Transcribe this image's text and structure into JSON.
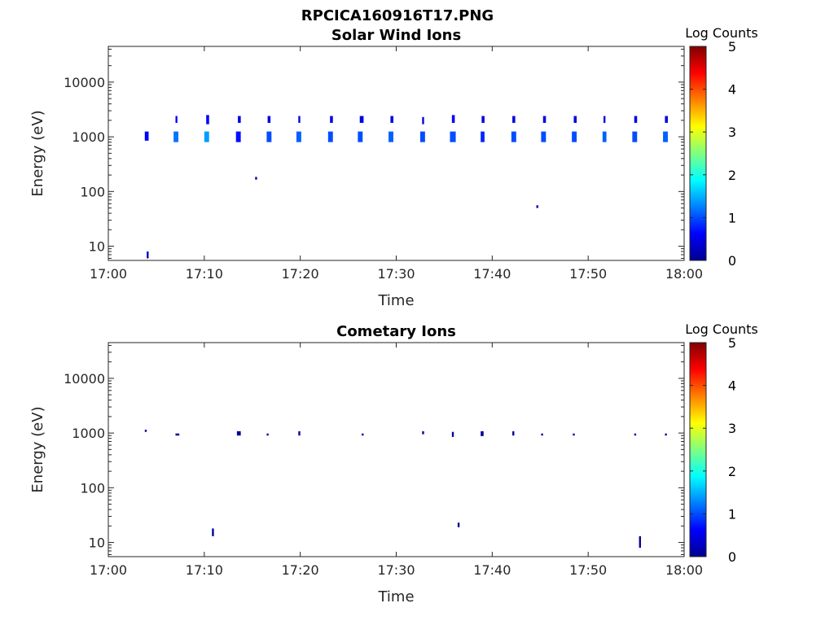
{
  "figure_title": "RPCICA160916T17.PNG",
  "chart_data": [
    {
      "type": "heatmap",
      "title": "Solar Wind Ions",
      "xlabel": "Time",
      "ylabel": "Energy (eV)",
      "x_ticks": [
        "17:00",
        "17:10",
        "17:20",
        "17:30",
        "17:40",
        "17:50",
        "18:00"
      ],
      "xlim_minutes": [
        0,
        60
      ],
      "y_scale": "log",
      "ylim": [
        5.5,
        45000
      ],
      "y_ticks": [
        10,
        100,
        1000,
        10000
      ],
      "y_tick_labels": [
        "10",
        "100",
        "1000",
        "10000"
      ],
      "colorbar": {
        "label": "Log Counts",
        "range": [
          0,
          5
        ],
        "ticks": [
          "0",
          "1",
          "2",
          "3",
          "4",
          "5"
        ],
        "colormap": "jet"
      },
      "cells": [
        {
          "t": 3.8,
          "dt": 0.4,
          "e_lo": 850,
          "e_hi": 1250,
          "v": 0.6
        },
        {
          "t": 4.0,
          "dt": 0.2,
          "e_lo": 6,
          "e_hi": 8,
          "v": 0.3
        },
        {
          "t": 6.8,
          "dt": 0.5,
          "e_lo": 800,
          "e_hi": 1250,
          "v": 1.2
        },
        {
          "t": 7.0,
          "dt": 0.2,
          "e_lo": 1800,
          "e_hi": 2400,
          "v": 0.6
        },
        {
          "t": 10.0,
          "dt": 0.5,
          "e_lo": 800,
          "e_hi": 1250,
          "v": 1.4
        },
        {
          "t": 10.2,
          "dt": 0.3,
          "e_lo": 1700,
          "e_hi": 2500,
          "v": 0.6
        },
        {
          "t": 13.3,
          "dt": 0.5,
          "e_lo": 800,
          "e_hi": 1250,
          "v": 0.7
        },
        {
          "t": 13.5,
          "dt": 0.3,
          "e_lo": 1800,
          "e_hi": 2400,
          "v": 0.5
        },
        {
          "t": 15.3,
          "dt": 0.2,
          "e_lo": 165,
          "e_hi": 185,
          "v": 0.2
        },
        {
          "t": 16.5,
          "dt": 0.5,
          "e_lo": 800,
          "e_hi": 1250,
          "v": 1.0
        },
        {
          "t": 16.6,
          "dt": 0.3,
          "e_lo": 1800,
          "e_hi": 2400,
          "v": 0.5
        },
        {
          "t": 19.6,
          "dt": 0.5,
          "e_lo": 800,
          "e_hi": 1250,
          "v": 1.1
        },
        {
          "t": 19.8,
          "dt": 0.2,
          "e_lo": 1800,
          "e_hi": 2400,
          "v": 0.5
        },
        {
          "t": 22.9,
          "dt": 0.5,
          "e_lo": 800,
          "e_hi": 1250,
          "v": 1.0
        },
        {
          "t": 23.1,
          "dt": 0.3,
          "e_lo": 1800,
          "e_hi": 2400,
          "v": 0.5
        },
        {
          "t": 26.0,
          "dt": 0.5,
          "e_lo": 800,
          "e_hi": 1250,
          "v": 1.0
        },
        {
          "t": 26.2,
          "dt": 0.4,
          "e_lo": 1800,
          "e_hi": 2400,
          "v": 0.5
        },
        {
          "t": 29.2,
          "dt": 0.5,
          "e_lo": 800,
          "e_hi": 1250,
          "v": 1.1
        },
        {
          "t": 29.4,
          "dt": 0.3,
          "e_lo": 1800,
          "e_hi": 2400,
          "v": 0.5
        },
        {
          "t": 32.5,
          "dt": 0.5,
          "e_lo": 800,
          "e_hi": 1250,
          "v": 1.0
        },
        {
          "t": 32.7,
          "dt": 0.2,
          "e_lo": 1700,
          "e_hi": 2300,
          "v": 0.5
        },
        {
          "t": 35.6,
          "dt": 0.6,
          "e_lo": 800,
          "e_hi": 1250,
          "v": 1.0
        },
        {
          "t": 35.8,
          "dt": 0.3,
          "e_lo": 1800,
          "e_hi": 2500,
          "v": 0.6
        },
        {
          "t": 38.8,
          "dt": 0.4,
          "e_lo": 800,
          "e_hi": 1250,
          "v": 0.8
        },
        {
          "t": 38.9,
          "dt": 0.3,
          "e_lo": 1800,
          "e_hi": 2400,
          "v": 0.5
        },
        {
          "t": 42.0,
          "dt": 0.5,
          "e_lo": 800,
          "e_hi": 1250,
          "v": 1.0
        },
        {
          "t": 42.1,
          "dt": 0.3,
          "e_lo": 1800,
          "e_hi": 2400,
          "v": 0.5
        },
        {
          "t": 44.6,
          "dt": 0.2,
          "e_lo": 50,
          "e_hi": 56,
          "v": 0.2
        },
        {
          "t": 45.1,
          "dt": 0.5,
          "e_lo": 800,
          "e_hi": 1250,
          "v": 1.0
        },
        {
          "t": 45.3,
          "dt": 0.3,
          "e_lo": 1800,
          "e_hi": 2400,
          "v": 0.5
        },
        {
          "t": 48.3,
          "dt": 0.5,
          "e_lo": 800,
          "e_hi": 1250,
          "v": 1.0
        },
        {
          "t": 48.5,
          "dt": 0.3,
          "e_lo": 1800,
          "e_hi": 2400,
          "v": 0.5
        },
        {
          "t": 51.5,
          "dt": 0.4,
          "e_lo": 800,
          "e_hi": 1250,
          "v": 1.1
        },
        {
          "t": 51.6,
          "dt": 0.2,
          "e_lo": 1800,
          "e_hi": 2400,
          "v": 0.5
        },
        {
          "t": 54.6,
          "dt": 0.5,
          "e_lo": 800,
          "e_hi": 1250,
          "v": 1.0
        },
        {
          "t": 54.8,
          "dt": 0.3,
          "e_lo": 1800,
          "e_hi": 2400,
          "v": 0.5
        },
        {
          "t": 57.8,
          "dt": 0.5,
          "e_lo": 800,
          "e_hi": 1250,
          "v": 1.1
        },
        {
          "t": 58.0,
          "dt": 0.3,
          "e_lo": 1800,
          "e_hi": 2400,
          "v": 0.5
        }
      ]
    },
    {
      "type": "heatmap",
      "title": "Cometary Ions",
      "xlabel": "Time",
      "ylabel": "Energy (eV)",
      "x_ticks": [
        "17:00",
        "17:10",
        "17:20",
        "17:30",
        "17:40",
        "17:50",
        "18:00"
      ],
      "xlim_minutes": [
        0,
        60
      ],
      "y_scale": "log",
      "ylim": [
        5.5,
        45000
      ],
      "y_ticks": [
        10,
        100,
        1000,
        10000
      ],
      "y_tick_labels": [
        "10",
        "100",
        "1000",
        "10000"
      ],
      "colorbar": {
        "label": "Log Counts",
        "range": [
          0,
          5
        ],
        "ticks": [
          "0",
          "1",
          "2",
          "3",
          "4",
          "5"
        ],
        "colormap": "jet"
      },
      "cells": [
        {
          "t": 3.8,
          "dt": 0.2,
          "e_lo": 1050,
          "e_hi": 1150,
          "v": 0.1
        },
        {
          "t": 7.0,
          "dt": 0.4,
          "e_lo": 900,
          "e_hi": 980,
          "v": 0.1
        },
        {
          "t": 10.8,
          "dt": 0.2,
          "e_lo": 13,
          "e_hi": 18,
          "v": 0.1
        },
        {
          "t": 13.4,
          "dt": 0.4,
          "e_lo": 900,
          "e_hi": 1080,
          "v": 0.1
        },
        {
          "t": 16.5,
          "dt": 0.2,
          "e_lo": 900,
          "e_hi": 980,
          "v": 0.1
        },
        {
          "t": 19.8,
          "dt": 0.2,
          "e_lo": 900,
          "e_hi": 1080,
          "v": 0.1
        },
        {
          "t": 26.4,
          "dt": 0.2,
          "e_lo": 900,
          "e_hi": 980,
          "v": 0.1
        },
        {
          "t": 32.7,
          "dt": 0.2,
          "e_lo": 950,
          "e_hi": 1080,
          "v": 0.1
        },
        {
          "t": 35.8,
          "dt": 0.2,
          "e_lo": 850,
          "e_hi": 1050,
          "v": 0.1
        },
        {
          "t": 36.4,
          "dt": 0.2,
          "e_lo": 19,
          "e_hi": 23,
          "v": 0.1
        },
        {
          "t": 38.8,
          "dt": 0.3,
          "e_lo": 880,
          "e_hi": 1080,
          "v": 0.1
        },
        {
          "t": 42.1,
          "dt": 0.2,
          "e_lo": 900,
          "e_hi": 1080,
          "v": 0.1
        },
        {
          "t": 45.1,
          "dt": 0.2,
          "e_lo": 900,
          "e_hi": 980,
          "v": 0.1
        },
        {
          "t": 48.4,
          "dt": 0.2,
          "e_lo": 900,
          "e_hi": 980,
          "v": 0.1
        },
        {
          "t": 54.8,
          "dt": 0.2,
          "e_lo": 900,
          "e_hi": 980,
          "v": 0.1
        },
        {
          "t": 55.3,
          "dt": 0.2,
          "e_lo": 8,
          "e_hi": 13,
          "v": 0.1
        },
        {
          "t": 58.0,
          "dt": 0.2,
          "e_lo": 900,
          "e_hi": 980,
          "v": 0.1
        }
      ]
    }
  ]
}
